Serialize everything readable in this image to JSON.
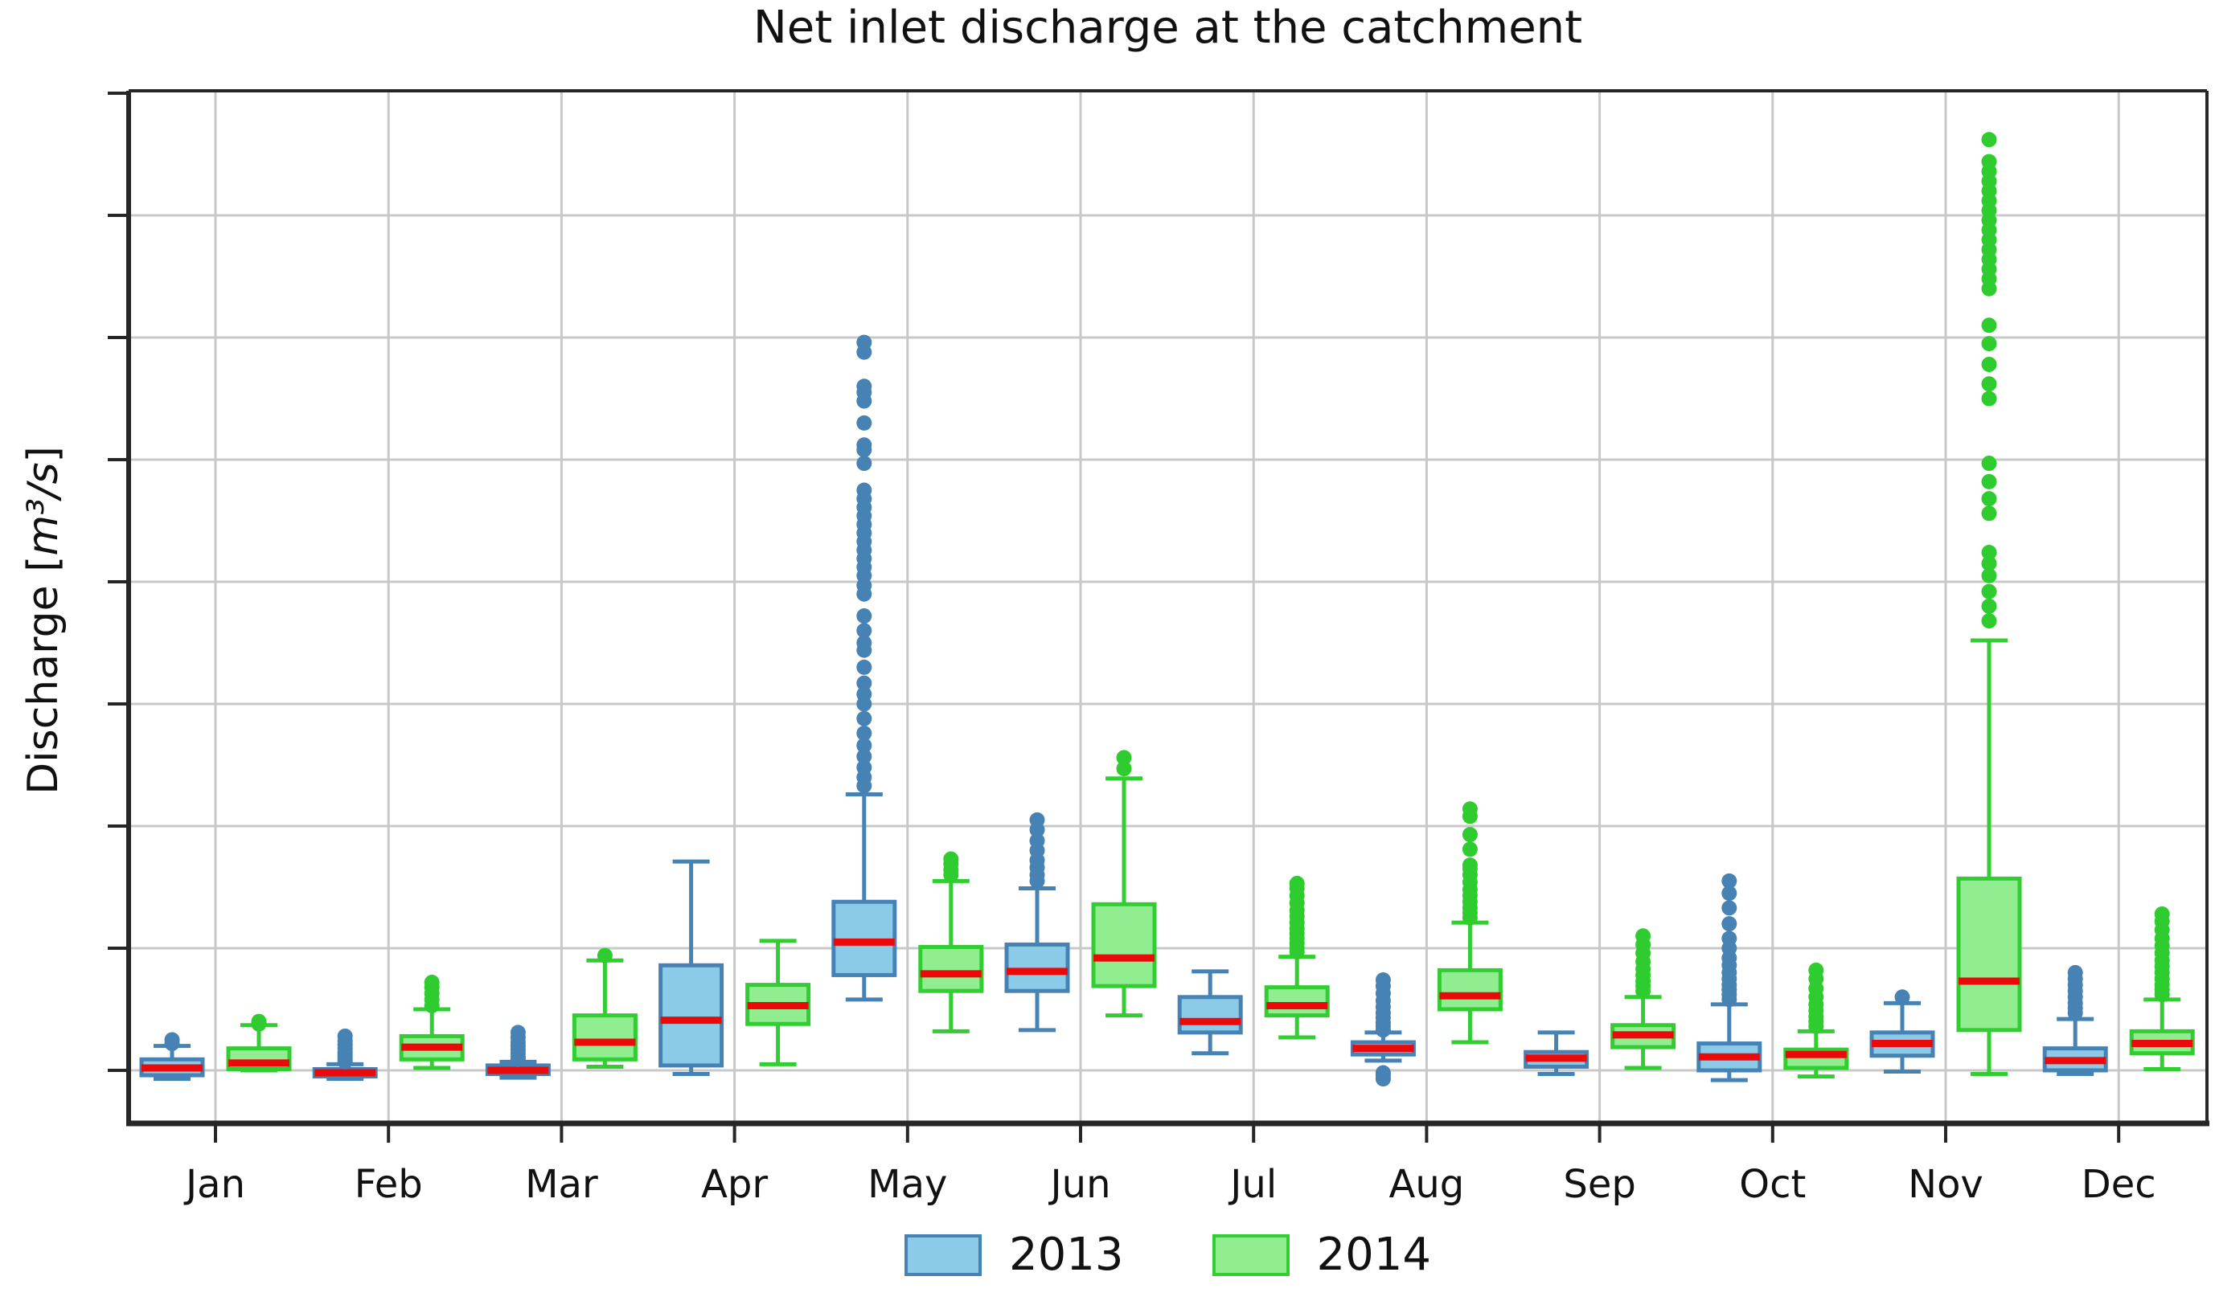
{
  "title": "Net inlet discharge at the catchment",
  "y_label": {
    "before": "Discharge [",
    "math": "m³/s",
    "after": "]"
  },
  "legend": {
    "items": [
      {
        "label": "2013"
      },
      {
        "label": "2014"
      }
    ]
  },
  "colors": {
    "grid": "#c8c8c8",
    "spine": "#262626",
    "tick": "#262626",
    "median": "#ea0a0a",
    "background": "#ffffff",
    "series_2013": {
      "face": "#8ccbe8",
      "edge": "#4683b4",
      "dot": "#4683b4"
    },
    "series_2014": {
      "face": "#90ee90",
      "edge": "#32cd32",
      "dot": "#2ecc2e"
    }
  },
  "chart_data": {
    "type": "box",
    "title": "Net inlet discharge at the catchment",
    "ylabel": "Discharge [m³/s]",
    "xlabel": "",
    "grid": true,
    "legend_position": "bottom-center",
    "y_axis_numeric_labels": false,
    "value_units": "gridline units (unlabeled axis, bottom gridline = 0, one gridline spacing = 1)",
    "ylim": [
      -0.45,
      8.02
    ],
    "y_gridlines": [
      0,
      1,
      2,
      3,
      4,
      5,
      6,
      7
    ],
    "y_ticks": [
      0,
      1,
      2,
      3,
      4,
      5,
      6,
      7,
      8
    ],
    "categories": [
      "Jan",
      "Feb",
      "Mar",
      "Apr",
      "May",
      "Jun",
      "Jul",
      "Aug",
      "Sep",
      "Oct",
      "Nov",
      "Dec"
    ],
    "series": [
      {
        "name": "2013",
        "boxes": [
          {
            "whislo": -0.07,
            "q1": -0.04,
            "med": 0.02,
            "q3": 0.09,
            "whishi": 0.2,
            "fliers": [
              0.22,
              0.25
            ]
          },
          {
            "whislo": -0.07,
            "q1": -0.05,
            "med": -0.02,
            "q3": 0.01,
            "whishi": 0.05,
            "fliers": [
              0.07,
              0.09,
              0.11,
              0.13,
              0.15,
              0.18,
              0.21,
              0.24,
              0.28
            ]
          },
          {
            "whislo": -0.06,
            "q1": -0.03,
            "med": 0.0,
            "q3": 0.04,
            "whishi": 0.07,
            "fliers": [
              0.09,
              0.11,
              0.14,
              0.17,
              0.2,
              0.23,
              0.27,
              0.31
            ]
          },
          {
            "whislo": -0.03,
            "q1": 0.04,
            "med": 0.41,
            "q3": 0.86,
            "whishi": 1.71,
            "fliers": []
          },
          {
            "whislo": 0.58,
            "q1": 0.78,
            "med": 1.05,
            "q3": 1.38,
            "whishi": 2.26,
            "fliers": [
              2.33,
              2.4,
              2.48,
              2.57,
              2.66,
              2.76,
              2.88,
              3.0,
              3.08,
              3.17,
              3.3,
              3.44,
              3.5,
              3.6,
              3.72,
              3.9,
              3.97,
              4.05,
              4.12,
              4.19,
              4.26,
              4.33,
              4.4,
              4.47,
              4.54,
              4.61,
              4.68,
              4.75,
              4.97,
              5.08,
              5.12,
              5.3,
              5.48,
              5.55,
              5.6,
              5.88,
              5.96
            ]
          },
          {
            "whislo": 0.33,
            "q1": 0.65,
            "med": 0.81,
            "q3": 1.03,
            "whishi": 1.49,
            "fliers": [
              1.55,
              1.6,
              1.66,
              1.72,
              1.8,
              1.88,
              1.97,
              2.05
            ]
          },
          {
            "whislo": 0.14,
            "q1": 0.31,
            "med": 0.4,
            "q3": 0.6,
            "whishi": 0.81,
            "fliers": []
          },
          {
            "whislo": 0.08,
            "q1": 0.13,
            "med": 0.18,
            "q3": 0.23,
            "whishi": 0.31,
            "fliers": [
              0.33,
              0.36,
              0.39,
              0.43,
              0.47,
              0.52,
              0.57,
              0.63,
              0.69,
              0.74,
              -0.02,
              -0.04,
              -0.07
            ]
          },
          {
            "whislo": -0.03,
            "q1": 0.03,
            "med": 0.1,
            "q3": 0.15,
            "whishi": 0.31,
            "fliers": []
          },
          {
            "whislo": -0.08,
            "q1": 0.0,
            "med": 0.11,
            "q3": 0.22,
            "whishi": 0.54,
            "fliers": [
              0.58,
              0.62,
              0.66,
              0.7,
              0.75,
              0.8,
              0.86,
              0.92,
              1.0,
              1.08,
              1.2,
              1.33,
              1.45,
              1.55
            ]
          },
          {
            "whislo": -0.01,
            "q1": 0.12,
            "med": 0.22,
            "q3": 0.31,
            "whishi": 0.55,
            "fliers": [
              0.6
            ]
          },
          {
            "whislo": -0.03,
            "q1": 0.0,
            "med": 0.08,
            "q3": 0.18,
            "whishi": 0.42,
            "fliers": [
              0.47,
              0.51,
              0.55,
              0.6,
              0.65,
              0.7,
              0.75,
              0.8
            ]
          }
        ]
      },
      {
        "name": "2014",
        "boxes": [
          {
            "whislo": 0.0,
            "q1": 0.01,
            "med": 0.06,
            "q3": 0.18,
            "whishi": 0.37,
            "fliers": [
              0.38,
              0.4
            ]
          },
          {
            "whislo": 0.02,
            "q1": 0.09,
            "med": 0.19,
            "q3": 0.28,
            "whishi": 0.5,
            "fliers": [
              0.53,
              0.58,
              0.63,
              0.68,
              0.72
            ]
          },
          {
            "whislo": 0.03,
            "q1": 0.09,
            "med": 0.23,
            "q3": 0.45,
            "whishi": 0.9,
            "fliers": [
              0.94
            ]
          },
          {
            "whislo": 0.05,
            "q1": 0.38,
            "med": 0.53,
            "q3": 0.7,
            "whishi": 1.06,
            "fliers": []
          },
          {
            "whislo": 0.32,
            "q1": 0.65,
            "med": 0.79,
            "q3": 1.01,
            "whishi": 1.55,
            "fliers": [
              1.6,
              1.64,
              1.69,
              1.73
            ]
          },
          {
            "whislo": 0.45,
            "q1": 0.69,
            "med": 0.92,
            "q3": 1.36,
            "whishi": 2.39,
            "fliers": [
              2.47,
              2.56
            ]
          },
          {
            "whislo": 0.27,
            "q1": 0.45,
            "med": 0.53,
            "q3": 0.68,
            "whishi": 0.93,
            "fliers": [
              0.97,
              1.0,
              1.04,
              1.08,
              1.12,
              1.16,
              1.21,
              1.26,
              1.31,
              1.37,
              1.43,
              1.49,
              1.53
            ]
          },
          {
            "whislo": 0.23,
            "q1": 0.5,
            "med": 0.61,
            "q3": 0.82,
            "whishi": 1.21,
            "fliers": [
              1.25,
              1.29,
              1.33,
              1.38,
              1.43,
              1.48,
              1.54,
              1.6,
              1.65,
              1.68,
              1.81,
              1.93,
              2.08,
              2.14
            ]
          },
          {
            "whislo": 0.02,
            "q1": 0.19,
            "med": 0.29,
            "q3": 0.37,
            "whishi": 0.6,
            "fliers": [
              0.65,
              0.69,
              0.73,
              0.78,
              0.83,
              0.89,
              0.96,
              1.03,
              1.1
            ]
          },
          {
            "whislo": -0.05,
            "q1": 0.02,
            "med": 0.13,
            "q3": 0.17,
            "whishi": 0.32,
            "fliers": [
              0.36,
              0.4,
              0.44,
              0.49,
              0.54,
              0.6,
              0.67,
              0.75,
              0.82
            ]
          },
          {
            "whislo": -0.03,
            "q1": 0.33,
            "med": 0.73,
            "q3": 1.57,
            "whishi": 3.52,
            "fliers": [
              3.68,
              3.8,
              3.92,
              4.05,
              4.15,
              4.24,
              4.56,
              4.68,
              4.82,
              4.97,
              5.5,
              5.62,
              5.78,
              5.95,
              6.1,
              6.4,
              6.48,
              6.56,
              6.64,
              6.72,
              6.8,
              6.88,
              6.96,
              7.04,
              7.12,
              7.2,
              7.28,
              7.36,
              7.44,
              7.62
            ]
          },
          {
            "whislo": 0.01,
            "q1": 0.14,
            "med": 0.22,
            "q3": 0.32,
            "whishi": 0.58,
            "fliers": [
              0.62,
              0.66,
              0.7,
              0.75,
              0.8,
              0.85,
              0.9,
              0.96,
              1.02,
              1.08,
              1.15,
              1.22,
              1.28
            ]
          }
        ]
      }
    ]
  }
}
